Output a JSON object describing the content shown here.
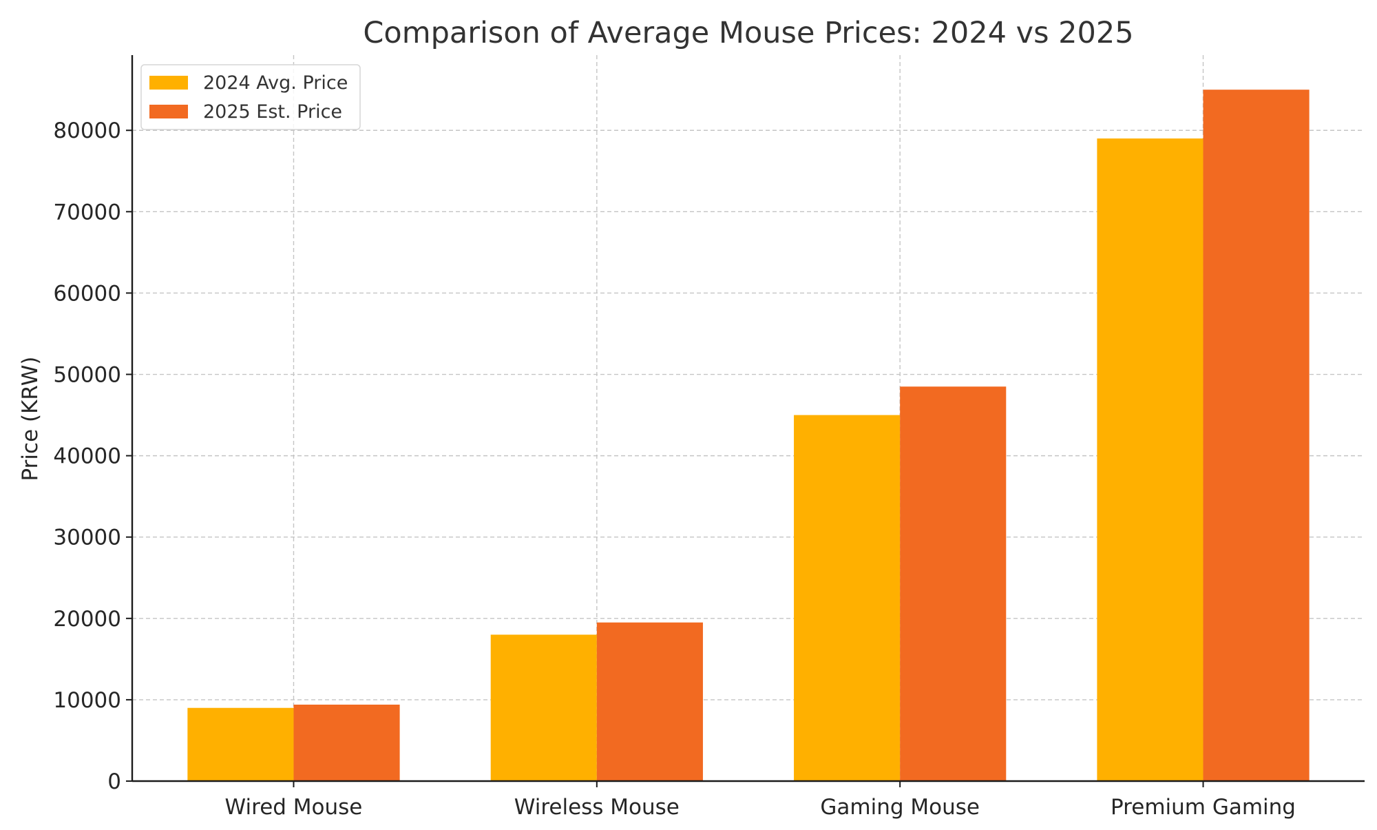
{
  "chart_data": {
    "type": "bar",
    "title": "Comparison of Average Mouse Prices: 2024 vs 2025",
    "xlabel": "",
    "ylabel": "Price (KRW)",
    "categories": [
      "Wired Mouse",
      "Wireless Mouse",
      "Gaming Mouse",
      "Premium Gaming"
    ],
    "series": [
      {
        "name": "2024 Avg. Price",
        "color": "#FFB000",
        "values": [
          9000,
          18000,
          45000,
          79000
        ]
      },
      {
        "name": "2025 Est. Price",
        "color": "#F26A21",
        "values": [
          9400,
          19500,
          48500,
          85000
        ]
      }
    ],
    "ylim": [
      0,
      89250
    ],
    "yticks": [
      0,
      10000,
      20000,
      30000,
      40000,
      50000,
      60000,
      70000,
      80000
    ],
    "ytick_labels": [
      "0",
      "10000",
      "20000",
      "30000",
      "40000",
      "50000",
      "60000",
      "70000",
      "80000"
    ],
    "grid": true,
    "legend_position": "top-left"
  }
}
